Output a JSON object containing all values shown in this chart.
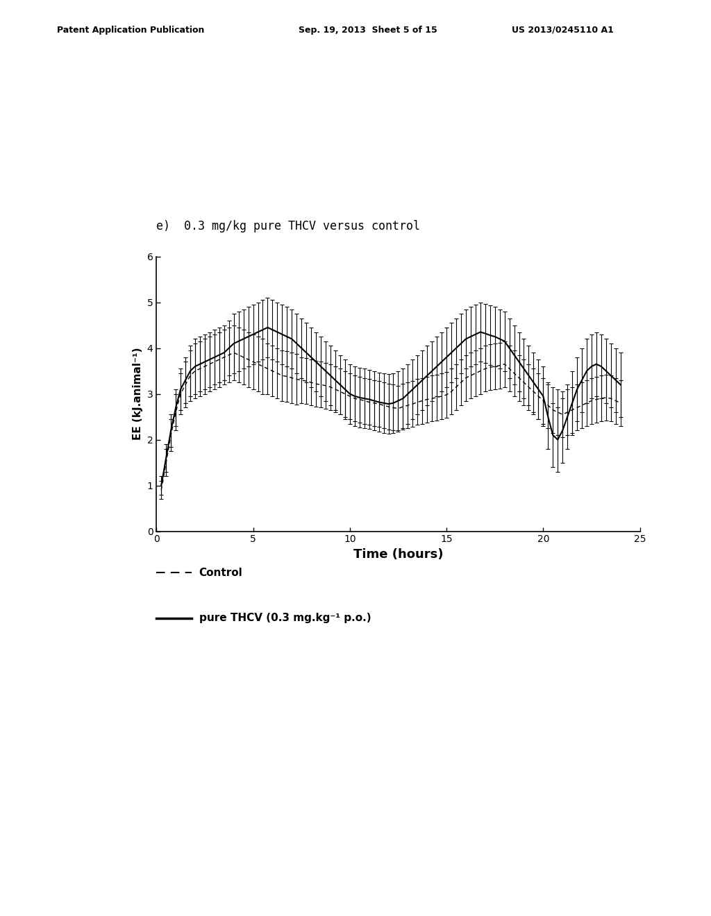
{
  "title_label": "e)  0.3 mg/kg pure THCV versus control",
  "xlabel": "Time (hours)",
  "ylabel": "EE (kJ.animal⁻¹)",
  "xlim": [
    0,
    25
  ],
  "ylim": [
    0,
    6
  ],
  "xticks": [
    0,
    5,
    10,
    15,
    20,
    25
  ],
  "yticks": [
    0,
    1,
    2,
    3,
    4,
    5,
    6
  ],
  "header_left": "Patent Application Publication",
  "header_mid": "Sep. 19, 2013  Sheet 5 of 15",
  "header_right": "US 2013/0245110 A1",
  "legend_control_label": "Control",
  "legend_thcv_label": "pure THCV (0.3 mg.kg⁻¹ p.o.)",
  "control_x": [
    0.25,
    0.5,
    0.75,
    1.0,
    1.25,
    1.5,
    1.75,
    2.0,
    2.25,
    2.5,
    2.75,
    3.0,
    3.25,
    3.5,
    3.75,
    4.0,
    4.25,
    4.5,
    4.75,
    5.0,
    5.25,
    5.5,
    5.75,
    6.0,
    6.25,
    6.5,
    6.75,
    7.0,
    7.25,
    7.5,
    7.75,
    8.0,
    8.25,
    8.5,
    8.75,
    9.0,
    9.25,
    9.5,
    9.75,
    10.0,
    10.25,
    10.5,
    10.75,
    11.0,
    11.25,
    11.5,
    11.75,
    12.0,
    12.25,
    12.5,
    12.75,
    13.0,
    13.25,
    13.5,
    13.75,
    14.0,
    14.25,
    14.5,
    14.75,
    15.0,
    15.25,
    15.5,
    15.75,
    16.0,
    16.25,
    16.5,
    16.75,
    17.0,
    17.25,
    17.5,
    17.75,
    18.0,
    18.25,
    18.5,
    18.75,
    19.0,
    19.25,
    19.5,
    19.75,
    20.0,
    20.25,
    20.5,
    20.75,
    21.0,
    21.25,
    21.5,
    21.75,
    22.0,
    22.25,
    22.5,
    22.75,
    23.0,
    23.25,
    23.5,
    23.75,
    24.0
  ],
  "control_y": [
    0.9,
    1.5,
    2.1,
    2.6,
    3.0,
    3.2,
    3.4,
    3.5,
    3.55,
    3.6,
    3.65,
    3.7,
    3.75,
    3.8,
    3.85,
    3.9,
    3.85,
    3.8,
    3.75,
    3.7,
    3.65,
    3.6,
    3.55,
    3.5,
    3.45,
    3.4,
    3.38,
    3.35,
    3.32,
    3.3,
    3.28,
    3.25,
    3.22,
    3.2,
    3.18,
    3.15,
    3.1,
    3.05,
    3.0,
    2.95,
    2.9,
    2.88,
    2.85,
    2.82,
    2.8,
    2.78,
    2.75,
    2.72,
    2.7,
    2.68,
    2.72,
    2.75,
    2.78,
    2.82,
    2.85,
    2.88,
    2.9,
    2.92,
    2.95,
    2.98,
    3.05,
    3.15,
    3.25,
    3.35,
    3.4,
    3.45,
    3.5,
    3.55,
    3.58,
    3.6,
    3.62,
    3.65,
    3.55,
    3.45,
    3.35,
    3.25,
    3.15,
    3.05,
    2.95,
    2.85,
    2.75,
    2.65,
    2.6,
    2.55,
    2.6,
    2.65,
    2.7,
    2.75,
    2.8,
    2.85,
    2.88,
    2.9,
    2.92,
    2.9,
    2.85,
    2.8
  ],
  "control_yerr": [
    0.2,
    0.3,
    0.35,
    0.4,
    0.45,
    0.5,
    0.55,
    0.6,
    0.6,
    0.6,
    0.6,
    0.6,
    0.6,
    0.6,
    0.6,
    0.6,
    0.6,
    0.6,
    0.6,
    0.6,
    0.6,
    0.6,
    0.55,
    0.55,
    0.55,
    0.55,
    0.55,
    0.55,
    0.55,
    0.5,
    0.5,
    0.5,
    0.5,
    0.5,
    0.5,
    0.5,
    0.5,
    0.5,
    0.5,
    0.5,
    0.5,
    0.5,
    0.5,
    0.5,
    0.5,
    0.5,
    0.5,
    0.5,
    0.5,
    0.5,
    0.5,
    0.5,
    0.5,
    0.5,
    0.5,
    0.5,
    0.5,
    0.5,
    0.5,
    0.5,
    0.5,
    0.5,
    0.5,
    0.5,
    0.5,
    0.5,
    0.5,
    0.5,
    0.5,
    0.5,
    0.5,
    0.5,
    0.5,
    0.5,
    0.5,
    0.5,
    0.5,
    0.5,
    0.5,
    0.5,
    0.5,
    0.5,
    0.5,
    0.5,
    0.5,
    0.5,
    0.5,
    0.5,
    0.5,
    0.5,
    0.5,
    0.5,
    0.5,
    0.5,
    0.5,
    0.5
  ],
  "thcv_x": [
    0.25,
    0.5,
    0.75,
    1.0,
    1.25,
    1.5,
    1.75,
    2.0,
    2.25,
    2.5,
    2.75,
    3.0,
    3.25,
    3.5,
    3.75,
    4.0,
    4.25,
    4.5,
    4.75,
    5.0,
    5.25,
    5.5,
    5.75,
    6.0,
    6.25,
    6.5,
    6.75,
    7.0,
    7.25,
    7.5,
    7.75,
    8.0,
    8.25,
    8.5,
    8.75,
    9.0,
    9.25,
    9.5,
    9.75,
    10.0,
    10.25,
    10.5,
    10.75,
    11.0,
    11.25,
    11.5,
    11.75,
    12.0,
    12.25,
    12.5,
    12.75,
    13.0,
    13.25,
    13.5,
    13.75,
    14.0,
    14.25,
    14.5,
    14.75,
    15.0,
    15.25,
    15.5,
    15.75,
    16.0,
    16.25,
    16.5,
    16.75,
    17.0,
    17.25,
    17.5,
    17.75,
    18.0,
    18.25,
    18.5,
    18.75,
    19.0,
    19.25,
    19.5,
    19.75,
    20.0,
    20.25,
    20.5,
    20.75,
    21.0,
    21.25,
    21.5,
    21.75,
    22.0,
    22.25,
    22.5,
    22.75,
    23.0,
    23.25,
    23.5,
    23.75,
    24.0
  ],
  "thcv_y": [
    1.0,
    1.6,
    2.2,
    2.7,
    3.1,
    3.3,
    3.5,
    3.6,
    3.65,
    3.7,
    3.75,
    3.8,
    3.85,
    3.9,
    4.0,
    4.1,
    4.15,
    4.2,
    4.25,
    4.3,
    4.35,
    4.4,
    4.45,
    4.4,
    4.35,
    4.3,
    4.25,
    4.2,
    4.1,
    4.0,
    3.9,
    3.8,
    3.7,
    3.6,
    3.5,
    3.4,
    3.3,
    3.2,
    3.1,
    3.0,
    2.95,
    2.92,
    2.9,
    2.88,
    2.85,
    2.82,
    2.8,
    2.78,
    2.8,
    2.85,
    2.9,
    3.0,
    3.1,
    3.2,
    3.3,
    3.4,
    3.5,
    3.6,
    3.7,
    3.8,
    3.9,
    4.0,
    4.1,
    4.2,
    4.25,
    4.3,
    4.35,
    4.32,
    4.28,
    4.25,
    4.2,
    4.15,
    4.0,
    3.85,
    3.7,
    3.55,
    3.4,
    3.25,
    3.1,
    2.95,
    2.5,
    2.1,
    2.0,
    2.2,
    2.5,
    2.8,
    3.1,
    3.3,
    3.5,
    3.6,
    3.65,
    3.6,
    3.5,
    3.4,
    3.3,
    3.2
  ],
  "thcv_yerr": [
    0.2,
    0.3,
    0.35,
    0.4,
    0.45,
    0.5,
    0.55,
    0.6,
    0.6,
    0.6,
    0.6,
    0.6,
    0.6,
    0.6,
    0.6,
    0.65,
    0.65,
    0.65,
    0.65,
    0.65,
    0.65,
    0.65,
    0.65,
    0.65,
    0.65,
    0.65,
    0.65,
    0.65,
    0.65,
    0.65,
    0.65,
    0.65,
    0.65,
    0.65,
    0.65,
    0.65,
    0.65,
    0.65,
    0.65,
    0.65,
    0.65,
    0.65,
    0.65,
    0.65,
    0.65,
    0.65,
    0.65,
    0.65,
    0.65,
    0.65,
    0.65,
    0.65,
    0.65,
    0.65,
    0.65,
    0.65,
    0.65,
    0.65,
    0.65,
    0.65,
    0.65,
    0.65,
    0.65,
    0.65,
    0.65,
    0.65,
    0.65,
    0.65,
    0.65,
    0.65,
    0.65,
    0.65,
    0.65,
    0.65,
    0.65,
    0.65,
    0.65,
    0.65,
    0.65,
    0.65,
    0.7,
    0.7,
    0.7,
    0.7,
    0.7,
    0.7,
    0.7,
    0.7,
    0.7,
    0.7,
    0.7,
    0.7,
    0.7,
    0.7,
    0.7,
    0.7
  ]
}
